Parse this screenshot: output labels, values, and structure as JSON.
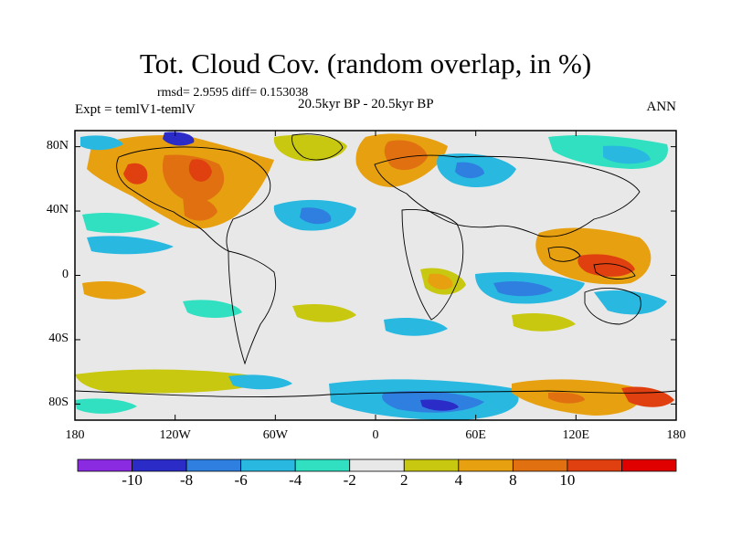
{
  "title": "Tot. Cloud Cov. (random overlap, in %)",
  "stats": "rmsd= 2.9595 diff= 0.153038",
  "expt": "Expt = temlV1-temlV",
  "period": "20.5kyr BP - 20.5kyr BP",
  "season": "ANN",
  "axes": {
    "lat_labels": [
      "80N",
      "40N",
      "0",
      "40S",
      "80S"
    ],
    "lat_values": [
      80,
      40,
      0,
      -40,
      -80
    ],
    "lon_labels": [
      "180",
      "120W",
      "60W",
      "0",
      "60E",
      "120E",
      "180"
    ],
    "lon_values": [
      -180,
      -120,
      -60,
      0,
      60,
      120,
      180
    ],
    "lon_range": [
      -180,
      180
    ],
    "lat_range": [
      -90,
      90
    ]
  },
  "colorbar": {
    "labels": [
      "-10",
      "-8",
      "-6",
      "-4",
      "-2",
      "2",
      "4",
      "8",
      "10"
    ],
    "colors": [
      "#8a2be2",
      "#2b2bc8",
      "#2f7fe0",
      "#28b8e0",
      "#30e0c0",
      "#e8e8e8",
      "#c8c810",
      "#e6a010",
      "#e07010",
      "#e04010",
      "#e00000"
    ]
  }
}
